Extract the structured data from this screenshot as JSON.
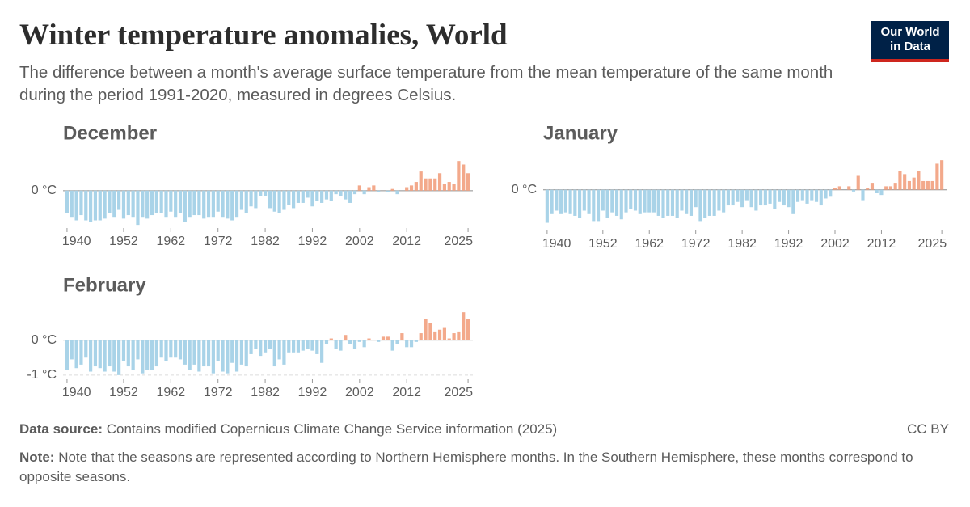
{
  "title": "Winter temperature anomalies, World",
  "subtitle": "The difference between a month's average surface temperature from the mean temperature of the same month during the period 1991-2020, measured in degrees Celsius.",
  "logo": [
    "Our World",
    "in Data"
  ],
  "source_label": "Data source:",
  "source": "Contains modified Copernicus Climate Change Service information (2025)",
  "license": "CC BY",
  "note_label": "Note:",
  "note": "Note that the seasons are represented according to Northern Hemisphere months. In the Southern Hemisphere, these months correspond to opposite seasons.",
  "chart_data": [
    {
      "type": "bar",
      "title": "December",
      "x": [
        1940,
        1941,
        1942,
        1943,
        1944,
        1945,
        1946,
        1947,
        1948,
        1949,
        1950,
        1951,
        1952,
        1953,
        1954,
        1955,
        1956,
        1957,
        1958,
        1959,
        1960,
        1961,
        1962,
        1963,
        1964,
        1965,
        1966,
        1967,
        1968,
        1969,
        1970,
        1971,
        1972,
        1973,
        1974,
        1975,
        1976,
        1977,
        1978,
        1979,
        1980,
        1981,
        1982,
        1983,
        1984,
        1985,
        1986,
        1987,
        1988,
        1989,
        1990,
        1991,
        1992,
        1993,
        1994,
        1995,
        1996,
        1997,
        1998,
        1999,
        2000,
        2001,
        2002,
        2003,
        2004,
        2005,
        2006,
        2007,
        2008,
        2009,
        2010,
        2011,
        2012,
        2013,
        2014,
        2015,
        2016,
        2017,
        2018,
        2019,
        2020,
        2021,
        2022,
        2023,
        2024,
        2025
      ],
      "values": [
        -0.65,
        -0.75,
        -0.85,
        -0.7,
        -0.85,
        -0.9,
        -0.85,
        -0.85,
        -0.8,
        -0.65,
        -0.75,
        -0.55,
        -0.8,
        -0.7,
        -0.75,
        -0.98,
        -0.75,
        -0.8,
        -0.7,
        -0.65,
        -0.65,
        -0.75,
        -0.6,
        -0.75,
        -0.65,
        -0.9,
        -0.75,
        -0.7,
        -0.7,
        -0.8,
        -0.75,
        -0.75,
        -0.6,
        -0.75,
        -0.8,
        -0.85,
        -0.75,
        -0.55,
        -0.65,
        -0.45,
        -0.5,
        -0.15,
        -0.15,
        -0.5,
        -0.6,
        -0.65,
        -0.55,
        -0.4,
        -0.5,
        -0.35,
        -0.35,
        -0.2,
        -0.45,
        -0.3,
        -0.35,
        -0.25,
        -0.3,
        -0.1,
        -0.15,
        -0.25,
        -0.35,
        -0.1,
        0.15,
        -0.1,
        0.1,
        0.15,
        -0.05,
        0.0,
        -0.05,
        0.05,
        -0.1,
        0.0,
        0.1,
        0.15,
        0.25,
        0.55,
        0.35,
        0.35,
        0.35,
        0.5,
        0.2,
        0.25,
        0.2,
        0.85,
        0.75,
        0.5
      ],
      "xlim": [
        1939.5,
        2025.5
      ],
      "xticks": [
        1940,
        1952,
        1962,
        1972,
        1982,
        1992,
        2002,
        2012,
        2025
      ],
      "ylim": [
        -1.0,
        0.9
      ],
      "yticks": [
        {
          "value": 0,
          "label": "0 °C"
        }
      ],
      "color_positive": "#f3a98b",
      "color_negative": "#a9d3e8"
    },
    {
      "type": "bar",
      "title": "January",
      "x": [
        1940,
        1941,
        1942,
        1943,
        1944,
        1945,
        1946,
        1947,
        1948,
        1949,
        1950,
        1951,
        1952,
        1953,
        1954,
        1955,
        1956,
        1957,
        1958,
        1959,
        1960,
        1961,
        1962,
        1963,
        1964,
        1965,
        1966,
        1967,
        1968,
        1969,
        1970,
        1971,
        1972,
        1973,
        1974,
        1975,
        1976,
        1977,
        1978,
        1979,
        1980,
        1981,
        1982,
        1983,
        1984,
        1985,
        1986,
        1987,
        1988,
        1989,
        1990,
        1991,
        1992,
        1993,
        1994,
        1995,
        1996,
        1997,
        1998,
        1999,
        2000,
        2001,
        2002,
        2003,
        2004,
        2005,
        2006,
        2007,
        2008,
        2009,
        2010,
        2011,
        2012,
        2013,
        2014,
        2015,
        2016,
        2017,
        2018,
        2019,
        2020,
        2021,
        2022,
        2023,
        2024,
        2025
      ],
      "values": [
        -0.95,
        -0.7,
        -0.6,
        -0.7,
        -0.65,
        -0.7,
        -0.75,
        -0.8,
        -0.6,
        -0.7,
        -0.9,
        -0.9,
        -0.6,
        -0.8,
        -0.65,
        -0.75,
        -0.85,
        -0.65,
        -0.55,
        -0.6,
        -0.7,
        -0.65,
        -0.65,
        -0.65,
        -0.75,
        -0.8,
        -0.75,
        -0.75,
        -0.8,
        -0.6,
        -0.7,
        -0.75,
        -0.5,
        -0.9,
        -0.8,
        -0.75,
        -0.75,
        -0.6,
        -0.65,
        -0.45,
        -0.45,
        -0.35,
        -0.5,
        -0.3,
        -0.5,
        -0.6,
        -0.45,
        -0.45,
        -0.4,
        -0.55,
        -0.35,
        -0.45,
        -0.5,
        -0.7,
        -0.35,
        -0.3,
        -0.4,
        -0.3,
        -0.35,
        -0.45,
        -0.25,
        -0.2,
        0.05,
        0.1,
        0.0,
        0.1,
        -0.05,
        0.4,
        -0.3,
        0.05,
        0.2,
        -0.1,
        -0.15,
        0.1,
        0.1,
        0.2,
        0.55,
        0.45,
        0.25,
        0.35,
        0.55,
        0.25,
        0.25,
        0.25,
        0.75,
        0.85
      ],
      "xlim": [
        1939.5,
        2025.5
      ],
      "xticks": [
        1940,
        1952,
        1962,
        1972,
        1982,
        1992,
        2002,
        2012,
        2025
      ],
      "ylim": [
        -1.1,
        0.9
      ],
      "yticks": [
        {
          "value": 0,
          "label": "0 °C"
        }
      ],
      "color_positive": "#f3a98b",
      "color_negative": "#a9d3e8"
    },
    {
      "type": "bar",
      "title": "February",
      "x": [
        1940,
        1941,
        1942,
        1943,
        1944,
        1945,
        1946,
        1947,
        1948,
        1949,
        1950,
        1951,
        1952,
        1953,
        1954,
        1955,
        1956,
        1957,
        1958,
        1959,
        1960,
        1961,
        1962,
        1963,
        1964,
        1965,
        1966,
        1967,
        1968,
        1969,
        1970,
        1971,
        1972,
        1973,
        1974,
        1975,
        1976,
        1977,
        1978,
        1979,
        1980,
        1981,
        1982,
        1983,
        1984,
        1985,
        1986,
        1987,
        1988,
        1989,
        1990,
        1991,
        1992,
        1993,
        1994,
        1995,
        1996,
        1997,
        1998,
        1999,
        2000,
        2001,
        2002,
        2003,
        2004,
        2005,
        2006,
        2007,
        2008,
        2009,
        2010,
        2011,
        2012,
        2013,
        2014,
        2015,
        2016,
        2017,
        2018,
        2019,
        2020,
        2021,
        2022,
        2023,
        2024,
        2025
      ],
      "values": [
        -0.85,
        -0.55,
        -0.8,
        -0.7,
        -0.5,
        -0.9,
        -0.75,
        -0.8,
        -0.9,
        -0.75,
        -0.9,
        -1.0,
        -0.6,
        -0.75,
        -0.85,
        -0.55,
        -0.95,
        -0.85,
        -0.85,
        -0.75,
        -0.5,
        -0.6,
        -0.5,
        -0.5,
        -0.55,
        -0.7,
        -0.85,
        -0.7,
        -0.9,
        -0.75,
        -0.75,
        -0.95,
        -0.6,
        -0.9,
        -0.95,
        -0.65,
        -0.9,
        -0.7,
        -0.75,
        -0.4,
        -0.25,
        -0.45,
        -0.35,
        -0.25,
        -0.75,
        -0.55,
        -0.7,
        -0.35,
        -0.35,
        -0.35,
        -0.3,
        -0.25,
        -0.3,
        -0.4,
        -0.65,
        -0.1,
        0.05,
        -0.25,
        -0.3,
        0.15,
        -0.1,
        -0.25,
        -0.05,
        -0.2,
        0.05,
        0.0,
        -0.05,
        0.1,
        0.1,
        -0.3,
        -0.1,
        0.2,
        -0.2,
        -0.2,
        -0.05,
        0.2,
        0.6,
        0.5,
        0.25,
        0.3,
        0.35,
        0.05,
        0.2,
        0.25,
        0.8,
        0.6
      ],
      "xlim": [
        1939.5,
        2025.5
      ],
      "xticks": [
        1940,
        1952,
        1962,
        1972,
        1982,
        1992,
        2002,
        2012,
        2025
      ],
      "ylim": [
        -1.05,
        0.85
      ],
      "yticks": [
        {
          "value": -1,
          "label": "-1 °C"
        },
        {
          "value": 0,
          "label": "0 °C"
        }
      ],
      "color_positive": "#f3a98b",
      "color_negative": "#a9d3e8"
    }
  ]
}
